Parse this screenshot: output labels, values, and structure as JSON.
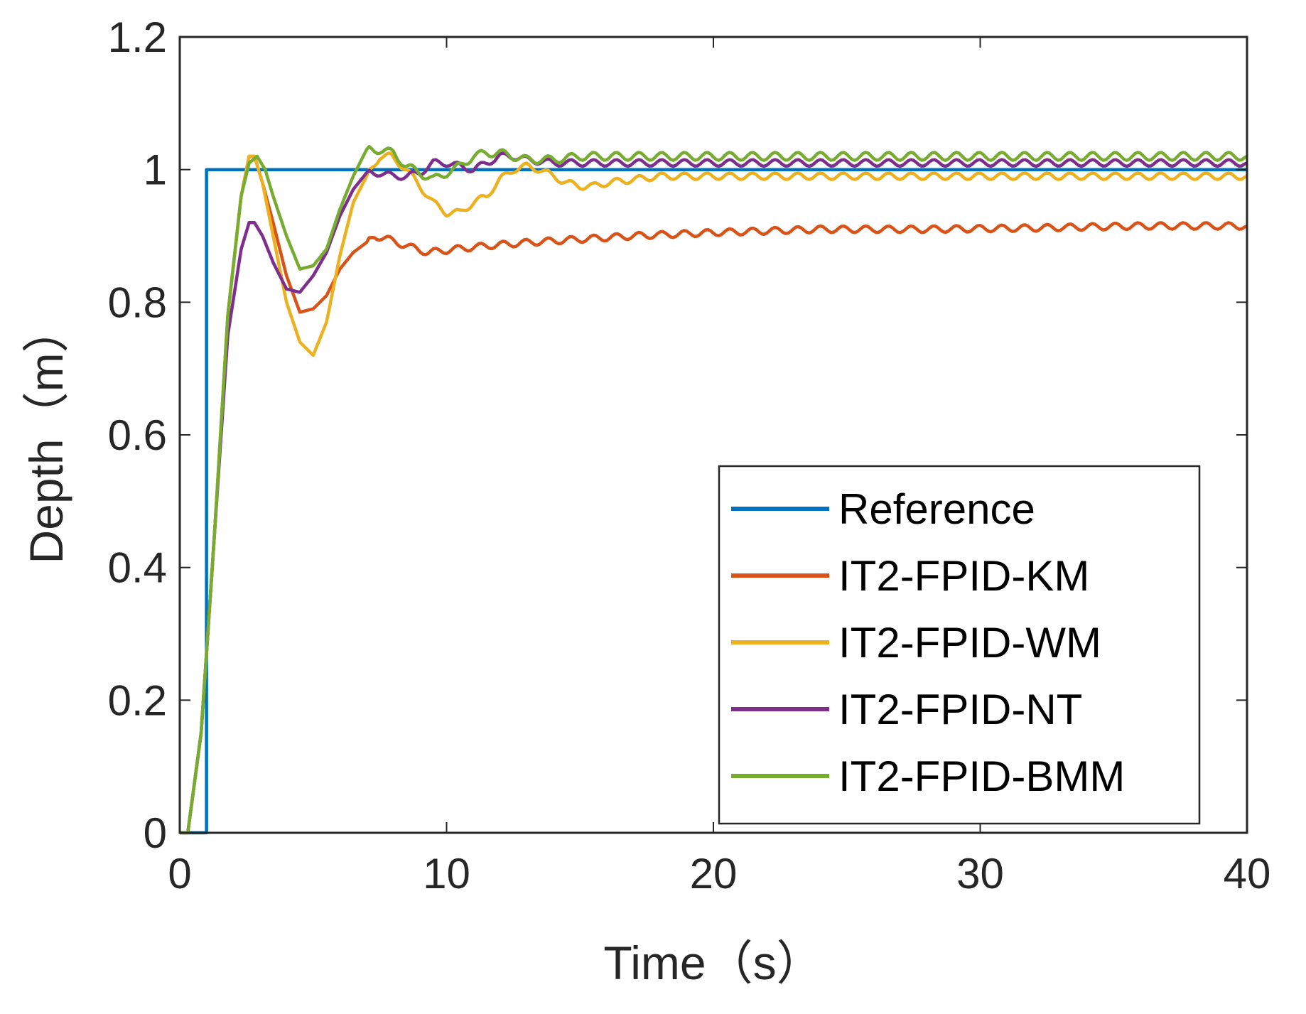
{
  "chart_data": {
    "type": "line",
    "title": "",
    "xlabel": "Time（s）",
    "ylabel": "Depth（m）",
    "xlim": [
      0,
      40
    ],
    "ylim": [
      0,
      1.2
    ],
    "xticks": [
      0,
      10,
      20,
      30,
      40
    ],
    "yticks": [
      0,
      0.2,
      0.4,
      0.6,
      0.8,
      1,
      1.2
    ],
    "xtick_labels": [
      "0",
      "10",
      "20",
      "30",
      "40"
    ],
    "ytick_labels": [
      "0",
      "0.2",
      "0.4",
      "0.6",
      "0.8",
      "1",
      "1.2"
    ],
    "grid": false,
    "legend_position": "bottom-right",
    "series": [
      {
        "name": "Reference",
        "color": "#0072BD",
        "x": [
          0,
          1,
          1,
          40
        ],
        "y": [
          0,
          0,
          1,
          1
        ]
      },
      {
        "name": "IT2-FPID-KM",
        "color": "#D95319",
        "x": [
          0,
          0.3,
          0.8,
          1.3,
          1.8,
          2.3,
          2.6,
          2.8,
          3.1,
          3.5,
          4.0,
          4.5,
          5.0,
          5.5,
          6.0,
          6.5,
          7.0,
          7.3,
          7.8,
          8.5,
          9.3,
          10.3,
          11.5,
          13,
          15,
          17,
          20,
          24,
          28,
          32,
          36,
          40
        ],
        "y": [
          0,
          0,
          0.15,
          0.45,
          0.78,
          0.96,
          1.02,
          1.02,
          0.98,
          0.92,
          0.84,
          0.785,
          0.79,
          0.81,
          0.85,
          0.875,
          0.89,
          0.9,
          0.895,
          0.885,
          0.875,
          0.88,
          0.885,
          0.89,
          0.895,
          0.9,
          0.905,
          0.91,
          0.91,
          0.912,
          0.915,
          0.915
        ],
        "wobble": 0.005
      },
      {
        "name": "IT2-FPID-WM",
        "color": "#EDB120",
        "x": [
          0,
          0.3,
          0.8,
          1.3,
          1.8,
          2.3,
          2.6,
          2.8,
          3.1,
          3.5,
          4.0,
          4.5,
          5.0,
          5.5,
          6.0,
          6.5,
          7.0,
          7.5,
          7.9,
          8.5,
          9.0,
          9.5,
          10.0,
          10.5,
          11.0,
          11.5,
          12.0,
          12.5,
          13.0,
          13.5,
          14.0,
          14.5,
          15.0,
          15.5,
          16.0,
          17.0,
          18.0,
          20,
          24,
          28,
          32,
          36,
          40
        ],
        "y": [
          0,
          0,
          0.15,
          0.45,
          0.78,
          0.96,
          1.02,
          1.02,
          0.98,
          0.9,
          0.8,
          0.74,
          0.72,
          0.77,
          0.87,
          0.95,
          0.99,
          1.02,
          1.02,
          1.0,
          0.975,
          0.95,
          0.935,
          0.935,
          0.95,
          0.96,
          0.985,
          1.0,
          1.005,
          1.0,
          0.99,
          0.98,
          0.975,
          0.975,
          0.98,
          0.985,
          0.99,
          0.99,
          0.99,
          0.99,
          0.99,
          0.99,
          0.99
        ],
        "wobble": 0.005
      },
      {
        "name": "IT2-FPID-NT",
        "color": "#7E2F8E",
        "x": [
          0,
          0.3,
          0.8,
          1.3,
          1.8,
          2.3,
          2.6,
          2.8,
          3.1,
          3.5,
          4.0,
          4.5,
          5.0,
          5.5,
          6.0,
          6.5,
          7.0,
          7.5,
          8.0,
          8.5,
          9.0,
          9.5,
          10.0,
          10.5,
          11.0,
          11.5,
          12.0,
          12.5,
          13.0,
          14.0,
          15,
          18,
          22,
          26,
          30,
          35,
          40
        ],
        "y": [
          0,
          0,
          0.15,
          0.45,
          0.75,
          0.88,
          0.92,
          0.92,
          0.9,
          0.86,
          0.82,
          0.815,
          0.84,
          0.875,
          0.93,
          0.97,
          0.995,
          0.995,
          0.99,
          0.99,
          0.995,
          1.01,
          1.01,
          1.005,
          1.0,
          1.01,
          1.02,
          1.02,
          1.015,
          1.01,
          1.01,
          1.01,
          1.01,
          1.01,
          1.01,
          1.01,
          1.01
        ],
        "wobble": 0.005
      },
      {
        "name": "IT2-FPID-BMM",
        "color": "#77AC30",
        "x": [
          0,
          0.3,
          0.8,
          1.3,
          1.8,
          2.3,
          2.6,
          2.9,
          3.2,
          3.5,
          4.0,
          4.5,
          5.0,
          5.5,
          6.0,
          6.5,
          7.0,
          7.5,
          8.0,
          8.5,
          9.0,
          9.5,
          10.0,
          10.5,
          11.0,
          11.5,
          12.0,
          12.5,
          13.0,
          14.0,
          15,
          18,
          22,
          26,
          30,
          35,
          40
        ],
        "y": [
          0,
          0,
          0.15,
          0.45,
          0.78,
          0.96,
          1.01,
          1.02,
          1.0,
          0.96,
          0.9,
          0.85,
          0.855,
          0.88,
          0.94,
          0.99,
          1.03,
          1.03,
          1.025,
          1.005,
          0.995,
          0.985,
          0.995,
          1.005,
          1.02,
          1.025,
          1.025,
          1.02,
          1.015,
          1.015,
          1.02,
          1.02,
          1.02,
          1.02,
          1.02,
          1.02,
          1.02
        ],
        "wobble": 0.006
      }
    ]
  }
}
